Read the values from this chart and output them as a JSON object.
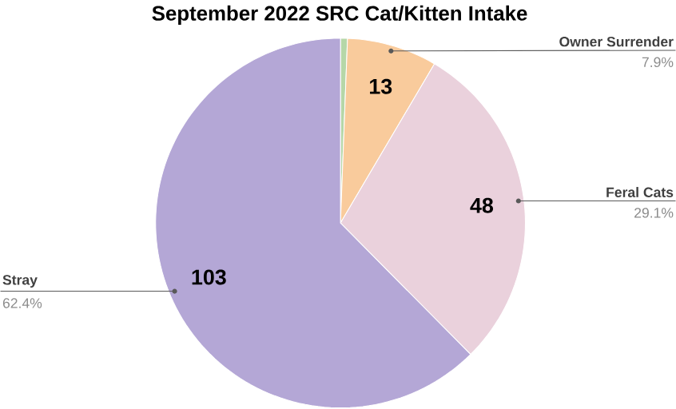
{
  "chart_data": {
    "type": "pie",
    "title": "September 2022 SRC Cat/Kitten Intake",
    "categories": [
      null,
      "Owner Surrender",
      "Feral Cats",
      "Stray"
    ],
    "values": [
      1,
      13,
      48,
      103
    ],
    "colors": [
      "#b6d7a8",
      "#f9cb9c",
      "#ead1dc",
      "#b4a7d6"
    ],
    "value_labels": [
      null,
      "13",
      "48",
      "103"
    ],
    "annotations": [
      null,
      "7.9%",
      "29.1%",
      "62.4%"
    ]
  }
}
